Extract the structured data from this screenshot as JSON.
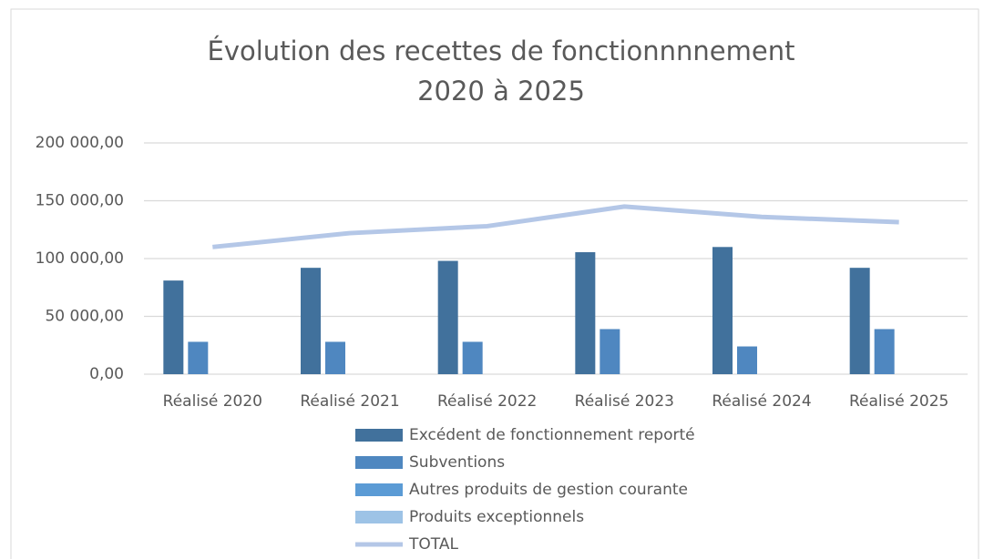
{
  "chart_data": {
    "type": "bar",
    "title": [
      "Évolution des recettes de fonctionnnnement",
      "2020 à 2025"
    ],
    "categories": [
      "Réalisé 2020",
      "Réalisé 2021",
      "Réalisé 2022",
      "Réalisé 2023",
      "Réalisé 2024",
      "Réalisé 2025"
    ],
    "series": [
      {
        "name": "Excédent de fonctionnement reporté",
        "color": "#41719c",
        "values": [
          81000,
          92000,
          98000,
          105500,
          110000,
          92000
        ]
      },
      {
        "name": "Subventions",
        "color": "#4f87c0",
        "values": [
          28000,
          28000,
          28000,
          39000,
          24000,
          39000
        ]
      },
      {
        "name": "Autres produits de gestion courante",
        "color": "#5b9bd5",
        "values": [
          0,
          0,
          0,
          0,
          0,
          0
        ]
      },
      {
        "name": "Produits exceptionnels",
        "color": "#9dc3e6",
        "values": [
          0,
          0,
          0,
          0,
          0,
          0
        ]
      },
      {
        "name": "TOTAL",
        "color": "#b4c7e7",
        "type": "line",
        "values": [
          110000,
          122000,
          128000,
          145000,
          136000,
          131500
        ]
      }
    ],
    "ylim": [
      0,
      200000
    ],
    "yticks": [
      {
        "value": 0,
        "label": "0,00"
      },
      {
        "value": 50000,
        "label": "50 000,00"
      },
      {
        "value": 100000,
        "label": "100 000,00"
      },
      {
        "value": 150000,
        "label": "150 000,00"
      },
      {
        "value": 200000,
        "label": "200 000,00"
      }
    ],
    "grid": true,
    "legend": "bottom"
  }
}
